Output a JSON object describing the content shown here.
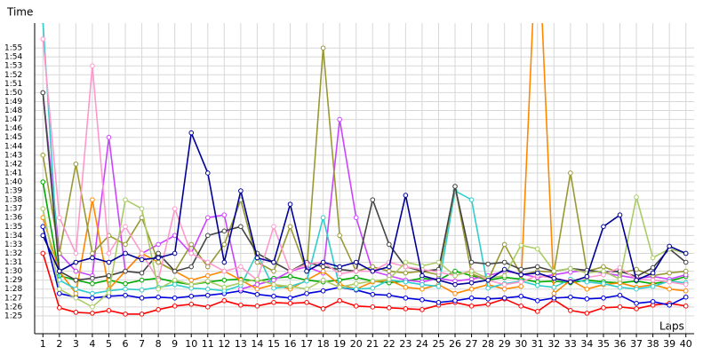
{
  "chart_data": {
    "type": "line",
    "y_label": "Time",
    "x_label": "Laps",
    "xlim": [
      0.5,
      40.5
    ],
    "ylim": [
      83,
      117
    ],
    "grid": true,
    "xticks": [
      1,
      2,
      3,
      4,
      5,
      6,
      7,
      8,
      9,
      10,
      11,
      12,
      13,
      14,
      15,
      16,
      17,
      18,
      19,
      20,
      21,
      22,
      23,
      24,
      25,
      26,
      27,
      28,
      29,
      30,
      31,
      32,
      33,
      34,
      35,
      36,
      37,
      38,
      39,
      40
    ],
    "yticks": [
      {
        "value": 85,
        "label": "1:25"
      },
      {
        "value": 86,
        "label": "1:26"
      },
      {
        "value": 87,
        "label": "1:27"
      },
      {
        "value": 88,
        "label": "1:28"
      },
      {
        "value": 89,
        "label": "1:29"
      },
      {
        "value": 90,
        "label": "1:30"
      },
      {
        "value": 91,
        "label": "1:31"
      },
      {
        "value": 92,
        "label": "1:32"
      },
      {
        "value": 93,
        "label": "1:33"
      },
      {
        "value": 94,
        "label": "1:34"
      },
      {
        "value": 95,
        "label": "1:35"
      },
      {
        "value": 96,
        "label": "1:36"
      },
      {
        "value": 97,
        "label": "1:37"
      },
      {
        "value": 98,
        "label": "1:38"
      },
      {
        "value": 99,
        "label": "1:39"
      },
      {
        "value": 100,
        "label": "1:40"
      },
      {
        "value": 101,
        "label": "1:41"
      },
      {
        "value": 102,
        "label": "1:42"
      },
      {
        "value": 103,
        "label": "1:43"
      },
      {
        "value": 104,
        "label": "1:44"
      },
      {
        "value": 105,
        "label": "1:45"
      },
      {
        "value": 106,
        "label": "1:46"
      },
      {
        "value": 107,
        "label": "1:47"
      },
      {
        "value": 108,
        "label": "1:48"
      },
      {
        "value": 109,
        "label": "1:49"
      },
      {
        "value": 110,
        "label": "1:50"
      },
      {
        "value": 111,
        "label": "1:51"
      },
      {
        "value": 112,
        "label": "1:52"
      },
      {
        "value": 113,
        "label": "1:53"
      },
      {
        "value": 114,
        "label": "1:54"
      },
      {
        "value": 115,
        "label": "1:55"
      }
    ],
    "x": [
      1,
      2,
      3,
      4,
      5,
      6,
      7,
      8,
      9,
      10,
      11,
      12,
      13,
      14,
      15,
      16,
      17,
      18,
      19,
      20,
      21,
      22,
      23,
      24,
      25,
      26,
      27,
      28,
      29,
      30,
      31,
      32,
      33,
      34,
      35,
      36,
      37,
      38,
      39,
      40
    ],
    "series": [
      {
        "color": "#ff0000",
        "values": [
          92,
          85.9,
          85.4,
          85.3,
          85.6,
          85.2,
          85.2,
          85.7,
          86.1,
          86.3,
          86.0,
          86.7,
          86.2,
          86.1,
          86.5,
          86.4,
          86.5,
          85.8,
          86.7,
          86.1,
          86.0,
          85.9,
          85.8,
          85.7,
          86.2,
          86.5,
          86.1,
          86.3,
          86.9,
          86.1,
          85.5,
          86.8,
          85.6,
          85.3,
          85.9,
          86.0,
          85.8,
          86.2,
          86.4,
          86.1
        ]
      },
      {
        "color": "#0000dd",
        "values": [
          95,
          87.5,
          87.1,
          87.0,
          87.2,
          87.3,
          87.0,
          87.1,
          87.0,
          87.2,
          87.3,
          87.5,
          87.8,
          87.4,
          87.2,
          87.0,
          87.5,
          87.8,
          88.2,
          87.9,
          87.4,
          87.3,
          87.0,
          86.8,
          86.5,
          86.7,
          87.0,
          86.9,
          87.0,
          87.2,
          86.7,
          87.0,
          87.1,
          86.9,
          87.0,
          87.3,
          86.4,
          86.6,
          86.2,
          87.1
        ]
      },
      {
        "color": "#00aa00",
        "values": [
          100,
          89.5,
          89.0,
          88.6,
          89.0,
          88.6,
          89.0,
          89.2,
          88.8,
          88.5,
          88.8,
          89.0,
          89.1,
          88.9,
          89.2,
          89.4,
          89.0,
          88.8,
          89.0,
          89.3,
          88.9,
          88.7,
          88.9,
          89.2,
          89.0,
          90.0,
          89.5,
          89.0,
          89.3,
          89.1,
          88.8,
          88.9,
          88.7,
          89.0,
          88.8,
          88.7,
          88.9,
          88.6,
          88.9,
          89.4
        ]
      },
      {
        "color": "#cc44ff",
        "values": [
          110,
          92,
          90,
          89.5,
          105,
          90,
          92,
          93,
          94,
          92,
          96,
          96.3,
          88,
          88.5,
          89,
          90,
          90.5,
          89.8,
          107,
          96,
          90,
          89.5,
          89,
          88.8,
          89.2,
          88.9,
          89.1,
          89.5,
          90,
          89.7,
          89.3,
          89.6,
          89.9,
          90.1,
          89.8,
          89.5,
          89.2,
          89.4,
          89.1,
          89.6
        ]
      },
      {
        "color": "#ff8800",
        "values": [
          96,
          90,
          87.5,
          98,
          88,
          90,
          92,
          91,
          90,
          89,
          89.5,
          90,
          89,
          88,
          88.5,
          88,
          89,
          90,
          88.5,
          88,
          88.8,
          89,
          88.2,
          88,
          88.5,
          87.5,
          88,
          88.5,
          88,
          88.3,
          130,
          87.5,
          89,
          88,
          88.5,
          88.7,
          88.2,
          88.5,
          88,
          87.8
        ]
      },
      {
        "color": "#33cccc",
        "values": [
          118,
          89,
          88,
          87.5,
          87.8,
          88,
          87.9,
          88.2,
          88.5,
          88.1,
          88.0,
          87.8,
          88.4,
          92,
          88.1,
          88.3,
          88.9,
          96,
          88.2,
          88.0,
          88.1,
          89,
          88.8,
          88.5,
          88.3,
          99,
          98,
          88.1,
          88.6,
          88.9,
          88.4,
          88.2,
          89.1,
          88.8,
          88.6,
          88.2,
          88.0,
          88.3,
          88.9,
          88.7
        ]
      },
      {
        "color": "#999933",
        "values": [
          103,
          92,
          102,
          92,
          94,
          93,
          96,
          91,
          90,
          93,
          90.5,
          93,
          98,
          91,
          90,
          95,
          90,
          115,
          94,
          90,
          90.5,
          90,
          89.8,
          90,
          89.6,
          99.5,
          89.7,
          89,
          93,
          89.6,
          90,
          89.9,
          101,
          90,
          90.5,
          89.8,
          90.2,
          89.5,
          89.8,
          90
        ]
      },
      {
        "color": "#444444",
        "values": [
          110,
          90,
          89,
          89.2,
          89.5,
          90,
          89.8,
          92,
          90,
          90.5,
          94,
          94.5,
          95,
          92,
          91,
          90,
          91,
          90.5,
          90.2,
          90.0,
          98,
          93,
          90.5,
          90,
          90.2,
          99.5,
          91,
          90.8,
          91,
          90.2,
          90.5,
          90,
          90.3,
          90.1,
          89.9,
          90,
          89.4,
          90.4,
          92.5,
          91
        ]
      },
      {
        "color": "#ff99cc",
        "values": [
          116,
          96,
          92,
          113,
          92,
          95,
          92,
          89,
          97,
          92,
          91,
          90,
          90.5,
          89,
          95,
          90,
          90.8,
          91,
          89.7,
          90,
          90,
          91,
          90.5,
          90.2,
          89.9,
          89.5,
          90.1,
          89,
          88.5,
          88.8,
          89.5,
          89.2,
          88.9,
          89.3,
          89.6,
          90.4,
          89.1,
          89,
          88.8,
          88.5
        ]
      },
      {
        "color": "#aacc66",
        "values": [
          97,
          88,
          87,
          86,
          87.6,
          98,
          97,
          88,
          89,
          88.5,
          88.9,
          88.2,
          88.7,
          89.1,
          88.5,
          88.3,
          88,
          89,
          88.2,
          88.6,
          88.9,
          89.1,
          91,
          90.6,
          91,
          89.5,
          90,
          89.2,
          89.5,
          92.9,
          92.5,
          90,
          90.3,
          89.8,
          90,
          89.1,
          98.3,
          91.5,
          92.5,
          92
        ]
      },
      {
        "color": "#000099",
        "values": [
          94,
          90,
          91,
          91.5,
          91,
          92,
          91.3,
          91.5,
          92,
          105.5,
          101,
          91,
          99,
          91.5,
          91,
          97.5,
          90,
          91,
          90.5,
          91,
          90,
          90.5,
          98.5,
          89.5,
          89,
          88.5,
          88.7,
          89,
          90.2,
          89.6,
          89.8,
          89.2,
          88.8,
          89.4,
          95,
          96.3,
          89,
          89.8,
          92.8,
          92
        ]
      }
    ]
  }
}
